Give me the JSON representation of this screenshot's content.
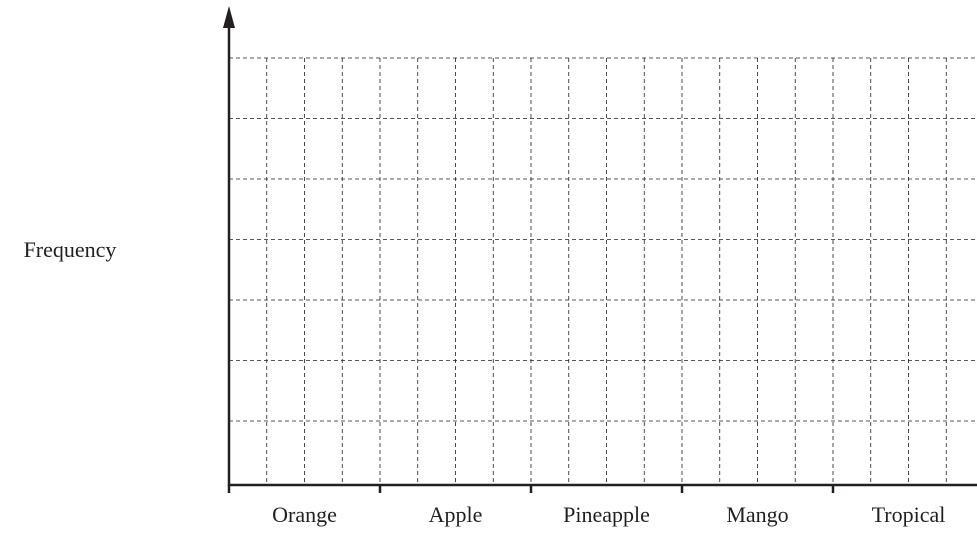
{
  "chart_data": {
    "type": "bar",
    "y_label": "Frequency",
    "categories": [
      "Orange",
      "Apple",
      "Pineapple",
      "Mango",
      "Tropical"
    ],
    "grid": true
  }
}
